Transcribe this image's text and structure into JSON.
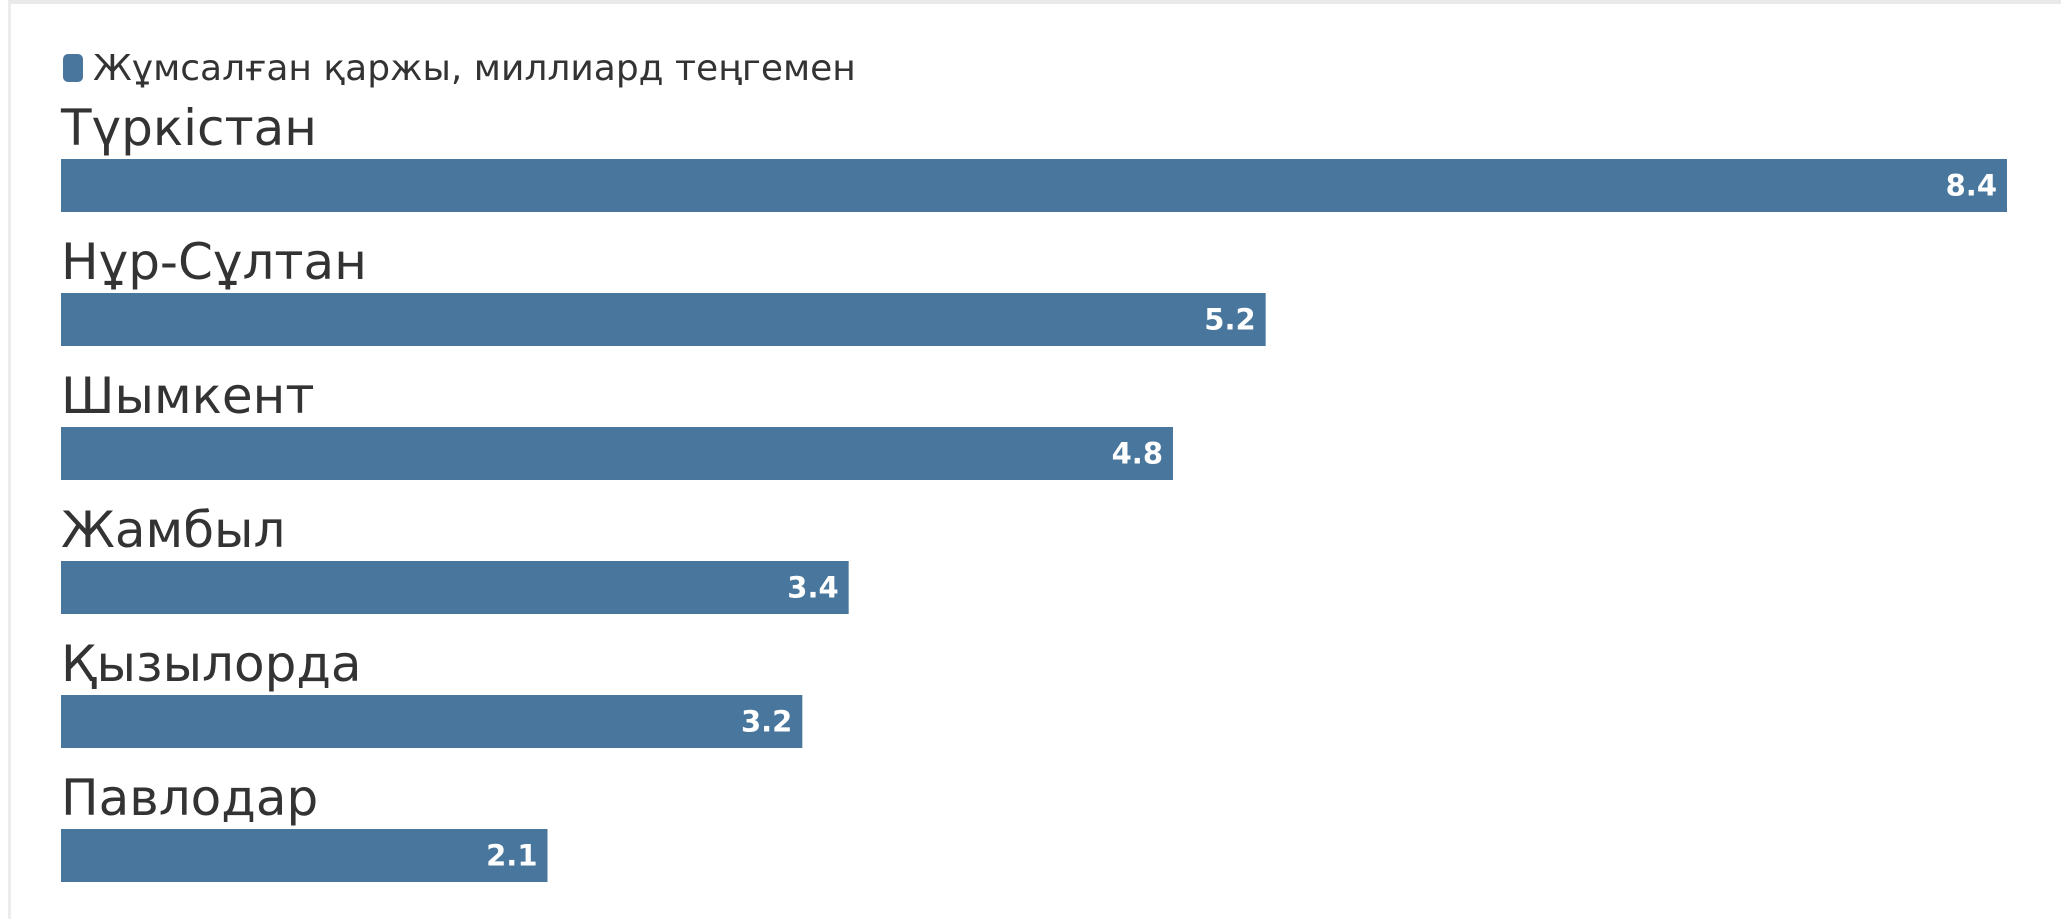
{
  "chart_data": {
    "type": "bar",
    "orientation": "horizontal",
    "categories": [
      "Түркістан",
      "Нұр-Сұлтан",
      "Шымкент",
      "Жамбыл",
      "Қызылорда",
      "Павлодар"
    ],
    "series": [
      {
        "name": "Жұмсалған қаржы, миллиард теңгемен",
        "values": [
          8.4,
          5.2,
          4.8,
          3.4,
          3.2,
          2.1
        ],
        "color": "#48769d"
      }
    ],
    "value_labels": [
      "8.4",
      "5.2",
      "4.8",
      "3.4",
      "3.2",
      "2.1"
    ],
    "xlim": [
      0,
      8.4
    ],
    "grid": false,
    "legend_position": "top-left"
  }
}
